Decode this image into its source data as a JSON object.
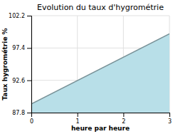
{
  "chart_data": {
    "type": "area",
    "title": "Evolution du taux d'hygrométrie",
    "xlabel": "heure par heure",
    "ylabel": "Taux hygrométrie %",
    "x": [
      0,
      3
    ],
    "values": [
      89.1,
      99.5
    ],
    "baseline": 87.8,
    "xlim": [
      0,
      3
    ],
    "ylim": [
      87.8,
      102.2
    ],
    "xticks": [
      0,
      1,
      2,
      3
    ],
    "yticks": [
      87.8,
      92.6,
      97.4,
      102.2
    ],
    "grid": true,
    "color": "#b8dfe8"
  }
}
